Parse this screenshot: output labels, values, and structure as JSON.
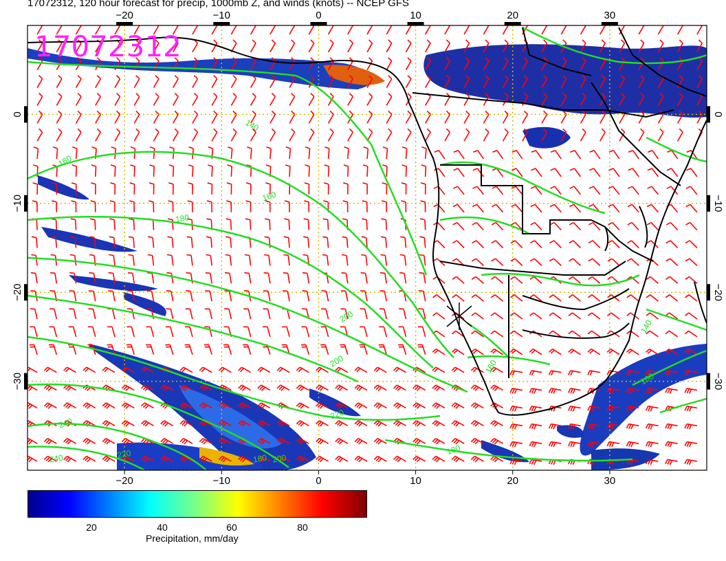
{
  "title": "17072312, 120 hour forecast for precip, 1000mb Z, and winds (knots) -- NCEP GFS",
  "date_stamp": "17072312",
  "map": {
    "lon_range": [
      -30,
      40
    ],
    "lat_range": [
      -40,
      10
    ],
    "x_ticks": [
      -20,
      -10,
      0,
      10,
      20,
      30
    ],
    "y_ticks": [
      0,
      -10,
      -20,
      -30
    ],
    "x_tick_labels": [
      "−20",
      "−10",
      "0",
      "10",
      "20",
      "30"
    ],
    "y_tick_labels": [
      "0",
      "−10",
      "−20",
      "−30"
    ],
    "colors": {
      "coast": "#000000",
      "contour": "#22dd22",
      "wind": "#ff0000",
      "grid": "#d4b800",
      "stamp": "#ff22ff"
    },
    "marker": {
      "lon": 14.5,
      "lat": -23
    }
  },
  "contour_labels": [
    "140",
    "160",
    "160",
    "180",
    "200",
    "200",
    "220",
    "220",
    "240",
    "240",
    "180",
    "160",
    "140",
    "160",
    "180",
    "200"
  ],
  "colorbar": {
    "label": "Precipitation, mm/day",
    "ticks": [
      "20",
      "40",
      "60",
      "80"
    ],
    "tick_values": [
      20,
      40,
      60,
      80
    ],
    "range": [
      0,
      100
    ],
    "colormap": "jet"
  }
}
